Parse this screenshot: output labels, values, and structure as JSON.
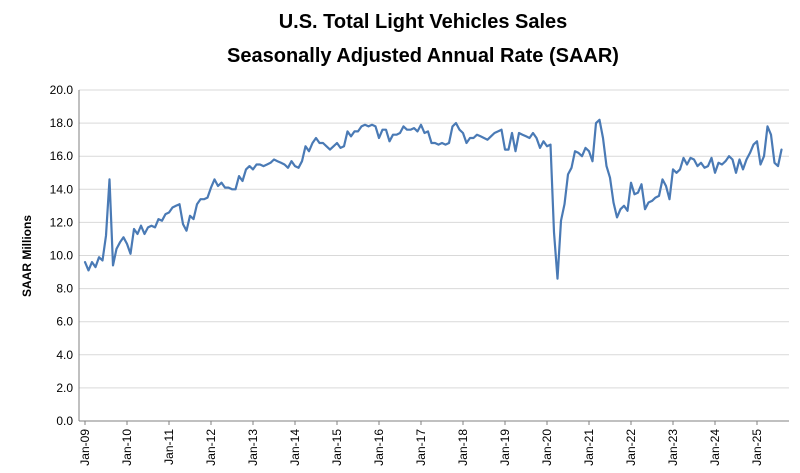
{
  "chart_data": {
    "type": "line",
    "title": "U.S. Total Light Vehicles Sales",
    "subtitle": "Seasonally Adjusted Annual Rate (SAAR)",
    "xlabel": "",
    "ylabel": "SAAR Millions",
    "ylim": [
      0,
      20
    ],
    "ytick_labels": [
      "0.0",
      "2.0",
      "4.0",
      "6.0",
      "8.0",
      "10.0",
      "12.0",
      "14.0",
      "16.0",
      "18.0",
      "20.0"
    ],
    "x_tick_labels": [
      "Jan-09",
      "Jan-10",
      "Jan-11",
      "Jan-12",
      "Jan-13",
      "Jan-14",
      "Jan-15",
      "Jan-16",
      "Jan-17",
      "Jan-18",
      "Jan-19",
      "Jan-20",
      "Jan-21",
      "Jan-22",
      "Jan-23",
      "Jan-24",
      "Jan-25"
    ],
    "grid": true,
    "line_color": "#4a7ab5",
    "series": [
      {
        "name": "SAAR",
        "start": "Jan-09",
        "frequency": "monthly",
        "values": [
          9.6,
          9.1,
          9.6,
          9.3,
          9.9,
          9.7,
          11.2,
          14.6,
          9.4,
          10.4,
          10.8,
          11.1,
          10.7,
          10.1,
          11.6,
          11.3,
          11.8,
          11.3,
          11.7,
          11.8,
          11.7,
          12.2,
          12.1,
          12.5,
          12.6,
          12.9,
          13.0,
          13.1,
          11.9,
          11.5,
          12.4,
          12.2,
          13.1,
          13.4,
          13.4,
          13.5,
          14.1,
          14.6,
          14.2,
          14.4,
          14.1,
          14.1,
          14.0,
          14.0,
          14.8,
          14.5,
          15.2,
          15.4,
          15.2,
          15.5,
          15.5,
          15.4,
          15.5,
          15.6,
          15.8,
          15.7,
          15.6,
          15.5,
          15.3,
          15.7,
          15.4,
          15.3,
          15.7,
          16.6,
          16.3,
          16.8,
          17.1,
          16.8,
          16.8,
          16.6,
          16.4,
          16.6,
          16.8,
          16.5,
          16.6,
          17.5,
          17.2,
          17.5,
          17.5,
          17.8,
          17.9,
          17.8,
          17.9,
          17.8,
          17.1,
          17.6,
          17.6,
          16.9,
          17.3,
          17.3,
          17.4,
          17.8,
          17.6,
          17.6,
          17.7,
          17.5,
          17.9,
          17.4,
          17.5,
          16.8,
          16.8,
          16.7,
          16.8,
          16.7,
          16.8,
          17.8,
          18.0,
          17.6,
          17.4,
          16.8,
          17.1,
          17.1,
          17.3,
          17.2,
          17.1,
          17.0,
          17.2,
          17.4,
          17.5,
          17.6,
          16.4,
          16.4,
          17.4,
          16.3,
          17.4,
          17.3,
          17.2,
          17.1,
          17.4,
          17.1,
          16.5,
          16.9,
          16.6,
          16.7,
          11.4,
          8.6,
          12.1,
          13.1,
          14.9,
          15.3,
          16.3,
          16.2,
          16.0,
          16.5,
          16.3,
          15.7,
          18.0,
          18.2,
          17.1,
          15.4,
          14.7,
          13.2,
          12.3,
          12.8,
          13.0,
          12.7,
          14.4,
          13.7,
          13.8,
          14.3,
          12.8,
          13.2,
          13.3,
          13.5,
          13.6,
          14.6,
          14.2,
          13.4,
          15.2,
          15.0,
          15.2,
          15.9,
          15.5,
          15.9,
          15.8,
          15.4,
          15.6,
          15.3,
          15.4,
          15.9,
          15.0,
          15.6,
          15.5,
          15.7,
          16.0,
          15.8,
          15.0,
          15.8,
          15.2,
          15.8,
          16.2,
          16.7,
          16.9,
          15.5,
          16.0,
          17.8,
          17.3,
          15.6,
          15.4,
          16.4
        ]
      }
    ]
  }
}
